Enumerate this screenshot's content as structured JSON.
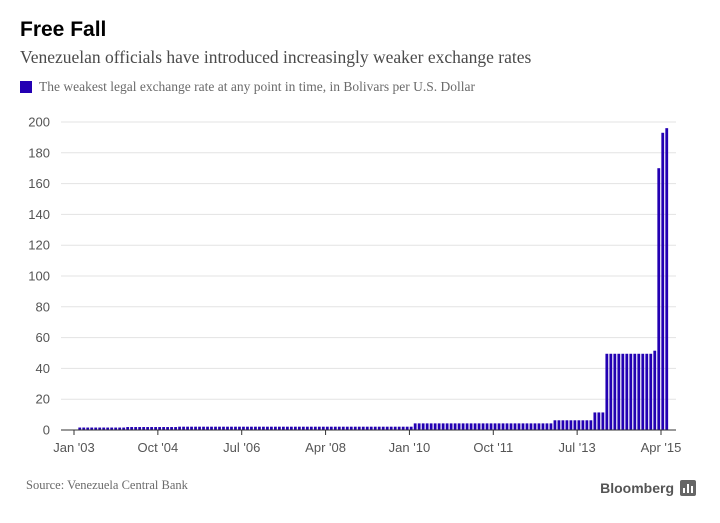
{
  "header": {
    "title": "Free Fall",
    "subtitle": "Venezuelan officials have introduced increasingly weaker exchange rates"
  },
  "legend": {
    "label": "The weakest legal exchange rate at any point in time, in Bolivars per U.S. Dollar",
    "color": "#2300b3"
  },
  "footer": {
    "source": "Source: Venezuela Central Bank",
    "brand": "Bloomberg",
    "brand_icon": "bloomberg-terminal-icon"
  },
  "colors": {
    "bar": "#2300b3",
    "grid": "#e3e3e3",
    "axis": "#333333",
    "tick_text": "#555555"
  },
  "chart_data": {
    "type": "bar",
    "title": "Free Fall",
    "xlabel": "",
    "ylabel": "Bolivars per U.S. Dollar",
    "ylim": [
      0,
      200
    ],
    "yticks": [
      0,
      20,
      40,
      60,
      80,
      100,
      120,
      140,
      160,
      180,
      200
    ],
    "grid": true,
    "x_start": "2003-01",
    "x_end": "2015-04",
    "x_ticks": [
      {
        "label": "Jan '03",
        "month_index": 0
      },
      {
        "label": "Oct '04",
        "month_index": 21
      },
      {
        "label": "Jul '06",
        "month_index": 42
      },
      {
        "label": "Apr '08",
        "month_index": 63
      },
      {
        "label": "Jan '10",
        "month_index": 84
      },
      {
        "label": "Oct '11",
        "month_index": 105
      },
      {
        "label": "Jul '13",
        "month_index": 126
      },
      {
        "label": "Apr '15",
        "month_index": 147
      }
    ],
    "series": [
      {
        "name": "Weakest legal exchange rate",
        "segments": [
          {
            "from": "2003-02",
            "to": "2004-01",
            "value": 1.6
          },
          {
            "from": "2004-02",
            "to": "2005-02",
            "value": 1.92
          },
          {
            "from": "2005-03",
            "to": "2010-01",
            "value": 2.15
          },
          {
            "from": "2010-02",
            "to": "2012-12",
            "value": 4.3
          },
          {
            "from": "2013-01",
            "to": "2013-10",
            "value": 6.3
          },
          {
            "from": "2013-11",
            "to": "2014-01",
            "value": 11.4
          },
          {
            "from": "2014-02",
            "to": "2015-01",
            "value": 49.5
          },
          {
            "from": "2015-02",
            "to": "2015-02",
            "value": 51.5
          },
          {
            "from": "2015-03",
            "to": "2015-03",
            "value": 170
          },
          {
            "from": "2015-04",
            "to": "2015-04",
            "value": 193
          },
          {
            "from": "2015-05",
            "to": "2015-05",
            "value": 196
          }
        ]
      }
    ]
  }
}
